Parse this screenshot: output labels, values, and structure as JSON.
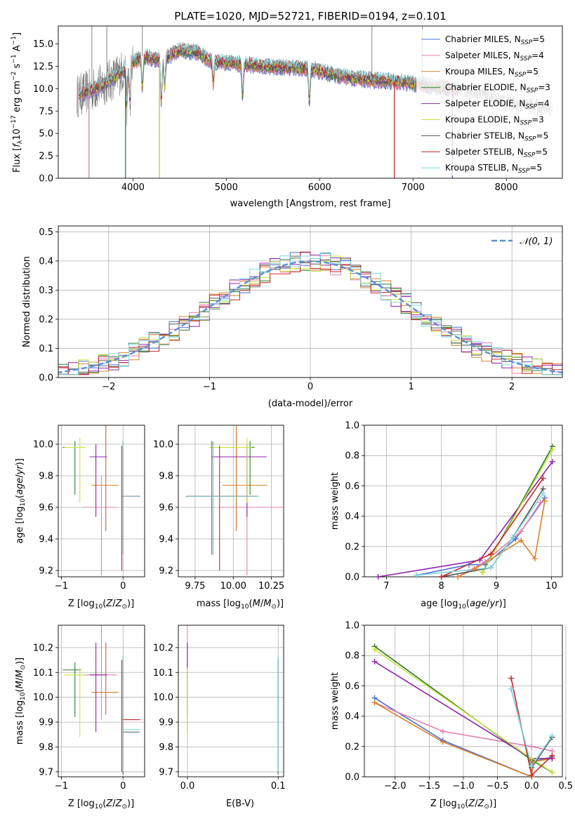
{
  "title": "PLATE=1020, MJD=52721, FIBERID=0194, z=0.101",
  "colors": {
    "Chabrier MILES": "#4f6fd0",
    "Salpeter MILES": "#e57fb3",
    "Kroupa MILES": "#d9822b",
    "Chabrier ELODIE": "#2e7d32",
    "Salpeter ELODIE": "#8e24aa",
    "Kroupa ELODIE": "#c6e43a",
    "Chabrier STELIB": "#555555",
    "Salpeter STELIB": "#c62828",
    "Kroupa STELIB": "#7fd8e0",
    "normal": "#5b8fd4"
  },
  "chart_data": [
    {
      "type": "line",
      "title": "PLATE=1020, MJD=52721, FIBERID=0194, z=0.101",
      "xlabel": "wavelength [Angstrom, rest frame]",
      "ylabel": "Flux [f_λ 10^-17 erg cm^-2 s^-1 A^-1]",
      "xlim": [
        3200,
        8600
      ],
      "ylim": [
        0,
        17
      ],
      "xticks": [
        "4000",
        "5000",
        "6000",
        "7000",
        "8000"
      ],
      "yticks": [
        "0.0",
        "2.5",
        "5.0",
        "7.5",
        "10.0",
        "12.5",
        "15.0"
      ],
      "legend": [
        {
          "name": "Chabrier MILES",
          "nssp": "5"
        },
        {
          "name": "Salpeter MILES",
          "nssp": "4"
        },
        {
          "name": "Kroupa MILES",
          "nssp": "5"
        },
        {
          "name": "Chabrier ELODIE",
          "nssp": "3"
        },
        {
          "name": "Salpeter ELODIE",
          "nssp": "4"
        },
        {
          "name": "Kroupa ELODIE",
          "nssp": "3"
        },
        {
          "name": "Chabrier STELIB",
          "nssp": "5"
        },
        {
          "name": "Salpeter STELIB",
          "nssp": "5"
        },
        {
          "name": "Kroupa STELIB",
          "nssp": "5"
        }
      ],
      "legend_position": "top-right",
      "continuum": [
        [
          3400,
          9.2
        ],
        [
          3600,
          10.0
        ],
        [
          3800,
          11.2
        ],
        [
          3950,
          12.5
        ],
        [
          4100,
          13.6
        ],
        [
          4300,
          13.2
        ],
        [
          4500,
          14.3
        ],
        [
          4700,
          14.0
        ],
        [
          4850,
          13.0
        ],
        [
          5000,
          12.9
        ],
        [
          5300,
          12.6
        ],
        [
          5600,
          12.4
        ],
        [
          5900,
          12.2
        ],
        [
          6200,
          11.4
        ],
        [
          6500,
          11.0
        ],
        [
          6800,
          10.8
        ],
        [
          7100,
          10.4
        ],
        [
          7400,
          10.0
        ],
        [
          7700,
          9.6
        ],
        [
          8000,
          8.4
        ],
        [
          8300,
          8.0
        ],
        [
          8500,
          7.8
        ]
      ],
      "absorption_lines": [
        [
          3933,
          0.5
        ],
        [
          3968,
          1.0
        ],
        [
          4101,
          4.0
        ],
        [
          4304,
          0.6
        ],
        [
          4340,
          4.0
        ],
        [
          4861,
          6.0
        ],
        [
          5175,
          2.5
        ],
        [
          5890,
          2.0
        ]
      ],
      "model_dropouts_x": [
        3530,
        3920,
        4285,
        6800,
        7420
      ],
      "data_range_x": [
        3400,
        8500
      ]
    },
    {
      "type": "histogram",
      "xlabel": "(data-model)/error",
      "ylabel": "Normed distribution",
      "xlim": [
        -2.5,
        2.5
      ],
      "ylim": [
        0,
        0.52
      ],
      "xticks": [
        "-2",
        "-1",
        "0",
        "1",
        "2"
      ],
      "yticks": [
        "0.0",
        "0.1",
        "0.2",
        "0.3",
        "0.4",
        "0.5"
      ],
      "bin_width": 0.1,
      "reference_curve": "normal(0,1)",
      "legend": [
        "𝒩(0, 1)"
      ],
      "legend_position": "top-right"
    },
    {
      "type": "error-bars",
      "xlabel": "Z [log10(Z/Z⊙)]",
      "ylabel": "age [log10(age/yr)]",
      "xlim": [
        -1.05,
        0.35
      ],
      "ylim": [
        9.16,
        10.12
      ],
      "xticks": [
        "-1",
        "0"
      ],
      "yticks": [
        "9.2",
        "9.4",
        "9.6",
        "9.8",
        "10.0"
      ]
    },
    {
      "type": "error-bars",
      "xlabel": "mass [log10(M/M⊙)]",
      "ylabel": "",
      "xlim": [
        9.64,
        10.33
      ],
      "ylim": [
        9.16,
        10.12
      ],
      "xticks": [
        "9.75",
        "10.00",
        "10.25"
      ],
      "yticks": [
        "9.2",
        "9.4",
        "9.6",
        "9.8",
        "10.0"
      ]
    },
    {
      "type": "line",
      "xlabel": "age [log10(age/yr)]",
      "ylabel": "mass weight",
      "xlim": [
        6.6,
        10.2
      ],
      "ylim": [
        0,
        1
      ],
      "xticks": [
        "7",
        "8",
        "9",
        "10"
      ],
      "yticks": [
        "0.0",
        "0.2",
        "0.4",
        "0.6",
        "0.8",
        "1.0"
      ],
      "series": [
        {
          "name": "Chabrier MILES",
          "points": [
            [
              7.55,
              0.01
            ],
            [
              8.5,
              0.08
            ],
            [
              8.8,
              0.08
            ],
            [
              9.35,
              0.25
            ],
            [
              9.88,
              0.52
            ]
          ]
        },
        {
          "name": "Salpeter MILES",
          "points": [
            [
              8.3,
              0.0
            ],
            [
              8.8,
              0.1
            ],
            [
              9.45,
              0.3
            ],
            [
              9.8,
              0.49
            ]
          ]
        },
        {
          "name": "Kroupa MILES",
          "points": [
            [
              8.3,
              0.0
            ],
            [
              8.6,
              0.05
            ],
            [
              9.45,
              0.24
            ],
            [
              9.7,
              0.12
            ],
            [
              9.88,
              0.5
            ]
          ]
        },
        {
          "name": "Chabrier ELODIE",
          "points": [
            [
              8.75,
              0.03
            ],
            [
              10.02,
              0.86
            ]
          ]
        },
        {
          "name": "Salpeter ELODIE",
          "points": [
            [
              6.85,
              0.0
            ],
            [
              8.7,
              0.11
            ],
            [
              10.02,
              0.76
            ]
          ]
        },
        {
          "name": "Kroupa ELODIE",
          "points": [
            [
              8.75,
              0.03
            ],
            [
              10.02,
              0.84
            ]
          ]
        },
        {
          "name": "Chabrier STELIB",
          "points": [
            [
              8.0,
              0.0
            ],
            [
              8.9,
              0.06
            ],
            [
              9.3,
              0.26
            ],
            [
              9.85,
              0.58
            ]
          ]
        },
        {
          "name": "Salpeter STELIB",
          "points": [
            [
              8.0,
              0.0
            ],
            [
              8.9,
              0.15
            ],
            [
              9.85,
              0.65
            ]
          ]
        },
        {
          "name": "Kroupa STELIB",
          "points": [
            [
              7.55,
              0.01
            ],
            [
              8.9,
              0.06
            ],
            [
              9.3,
              0.26
            ],
            [
              9.85,
              0.55
            ]
          ]
        }
      ]
    },
    {
      "type": "error-bars",
      "xlabel": "Z [log10(Z/Z⊙)]",
      "ylabel": "mass [log10(M/M⊙)]",
      "xlim": [
        -1.05,
        0.35
      ],
      "ylim": [
        9.68,
        10.29
      ],
      "xticks": [
        "-1",
        "0"
      ],
      "yticks": [
        "9.7",
        "9.8",
        "9.9",
        "10.0",
        "10.1",
        "10.2"
      ]
    },
    {
      "type": "error-bars",
      "xlabel": "E(B-V)",
      "ylabel": "",
      "xlim": [
        -0.01,
        0.106
      ],
      "ylim": [
        9.68,
        10.29
      ],
      "xticks": [
        "0.0",
        "0.1"
      ],
      "yticks": [
        "9.7",
        "9.8",
        "9.9",
        "10.0",
        "10.1",
        "10.2"
      ]
    },
    {
      "type": "line",
      "xlabel": "Z [log10(Z/Z⊙)]",
      "ylabel": "mass weight",
      "xlim": [
        -2.45,
        0.45
      ],
      "ylim": [
        0,
        1
      ],
      "xticks": [
        "-2.0",
        "-1.5",
        "-1.0",
        "-0.5",
        "0.0",
        "0.5"
      ],
      "yticks": [
        "0.0",
        "0.2",
        "0.4",
        "0.6",
        "0.8",
        "1.0"
      ],
      "series": [
        {
          "name": "Chabrier MILES",
          "points": [
            [
              -2.3,
              0.52
            ],
            [
              -1.3,
              0.24
            ],
            [
              0.0,
              0.0
            ],
            [
              0.02,
              0.1
            ],
            [
              0.3,
              0.13
            ]
          ]
        },
        {
          "name": "Salpeter MILES",
          "points": [
            [
              -2.3,
              0.49
            ],
            [
              -1.3,
              0.3
            ],
            [
              0.0,
              0.2
            ],
            [
              0.3,
              0.17
            ]
          ]
        },
        {
          "name": "Kroupa MILES",
          "points": [
            [
              -2.3,
              0.49
            ],
            [
              -1.3,
              0.23
            ],
            [
              0.0,
              0.0
            ],
            [
              0.02,
              0.1
            ],
            [
              0.3,
              0.12
            ]
          ]
        },
        {
          "name": "Chabrier ELODIE",
          "points": [
            [
              -2.3,
              0.86
            ],
            [
              0.0,
              0.11
            ],
            [
              0.3,
              0.03
            ]
          ]
        },
        {
          "name": "Salpeter ELODIE",
          "points": [
            [
              -2.3,
              0.76
            ],
            [
              0.0,
              0.12
            ],
            [
              0.3,
              0.12
            ]
          ]
        },
        {
          "name": "Kroupa ELODIE",
          "points": [
            [
              -2.3,
              0.84
            ],
            [
              0.0,
              0.12
            ],
            [
              0.3,
              0.03
            ]
          ]
        },
        {
          "name": "Chabrier STELIB",
          "points": [
            [
              -0.3,
              0.58
            ],
            [
              0.0,
              0.06
            ],
            [
              0.3,
              0.26
            ]
          ]
        },
        {
          "name": "Salpeter STELIB",
          "points": [
            [
              -0.3,
              0.65
            ],
            [
              0.0,
              0.01
            ],
            [
              0.3,
              0.14
            ]
          ]
        },
        {
          "name": "Kroupa STELIB",
          "points": [
            [
              -0.3,
              0.58
            ],
            [
              0.0,
              0.07
            ],
            [
              0.3,
              0.27
            ]
          ]
        }
      ]
    }
  ],
  "error_bars": {
    "Chabrier MILES": {
      "Z": [
        -0.28,
        0.23,
        0.2
      ],
      "age": [
        9.74,
        0.29,
        0.44
      ],
      "mass": [
        10.02,
        0.09,
        0.2
      ],
      "ebv": [
        0.0,
        0.0,
        0.0
      ]
    },
    "Salpeter MILES": {
      "Z": [
        -0.35,
        0.3,
        0.25
      ],
      "age": [
        9.6,
        0.43,
        0.2
      ],
      "mass": [
        10.09,
        0.18,
        0.27
      ],
      "ebv": [
        0.0,
        0.0,
        0.0
      ]
    },
    "Kroupa MILES": {
      "Z": [
        -0.28,
        0.23,
        0.2
      ],
      "age": [
        9.74,
        0.29,
        0.44
      ],
      "mass": [
        10.02,
        0.09,
        0.2
      ],
      "ebv": [
        0.0,
        0.0,
        0.0
      ]
    },
    "Chabrier ELODIE": {
      "Z": [
        -0.78,
        0.2,
        0.1
      ],
      "age": [
        9.98,
        0.3,
        0.04
      ],
      "mass": [
        10.11,
        0.19,
        0.03
      ],
      "ebv": [
        0.1,
        0.0,
        0.0
      ]
    },
    "Salpeter ELODIE": {
      "Z": [
        -0.44,
        0.1,
        0.18
      ],
      "age": [
        9.92,
        0.38,
        0.08
      ],
      "mass": [
        10.09,
        0.23,
        0.13
      ],
      "ebv": [
        0.0,
        0.0,
        0.0
      ]
    },
    "Kroupa ELODIE": {
      "Z": [
        -0.7,
        0.25,
        0.1
      ],
      "age": [
        9.98,
        0.35,
        0.06
      ],
      "mass": [
        10.09,
        0.25,
        0.03
      ],
      "ebv": [
        0.0,
        0.0,
        0.0
      ]
    },
    "Chabrier STELIB": {
      "Z": [
        0.0,
        0.0,
        0.27
      ],
      "age": [
        9.67,
        0.37,
        0.35
      ],
      "mass": [
        9.86,
        0.17,
        0.3
      ],
      "ebv": [
        0.1,
        0.0,
        0.0
      ]
    },
    "Salpeter STELIB": {
      "Z": [
        -0.02,
        0.0,
        0.3
      ],
      "age": [
        9.67,
        0.47,
        0.32
      ],
      "mass": [
        9.91,
        0.21,
        0.24
      ],
      "ebv": [
        0.1,
        0.0,
        0.0
      ]
    },
    "Kroupa STELIB": {
      "Z": [
        0.0,
        0.0,
        0.28
      ],
      "age": [
        9.67,
        0.37,
        0.35
      ],
      "mass": [
        9.87,
        0.17,
        0.3
      ],
      "ebv": [
        0.1,
        0.0,
        0.0
      ]
    }
  }
}
